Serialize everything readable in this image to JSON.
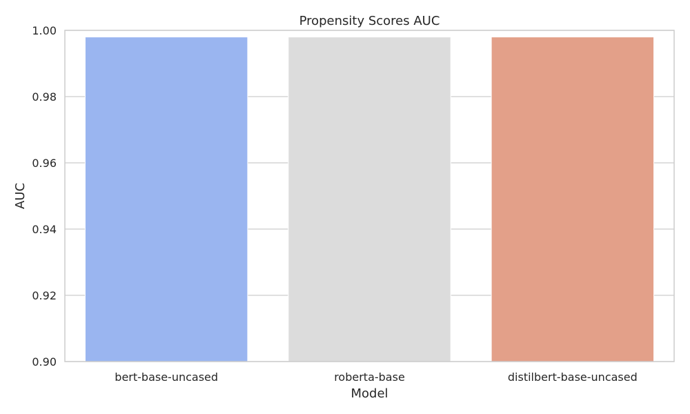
{
  "chart_data": {
    "type": "bar",
    "title": "Propensity Scores AUC",
    "xlabel": "Model",
    "ylabel": "AUC",
    "categories": [
      "bert-base-uncased",
      "roberta-base",
      "distilbert-base-uncased"
    ],
    "values": [
      0.998,
      0.998,
      0.998
    ],
    "colors": [
      "#9ab5f0",
      "#dcdcdc",
      "#e3a089"
    ],
    "ylim": [
      0.9,
      1.0
    ],
    "yticks": [
      "0.90",
      "0.92",
      "0.94",
      "0.96",
      "0.98",
      "1.00"
    ],
    "grid": true,
    "legend": false
  }
}
